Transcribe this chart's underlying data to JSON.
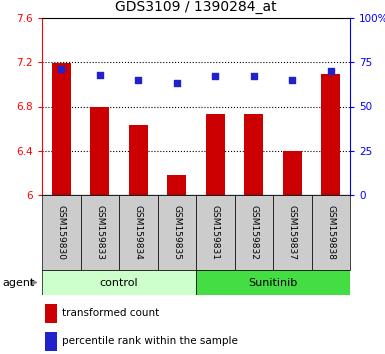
{
  "title": "GDS3109 / 1390284_at",
  "categories": [
    "GSM159830",
    "GSM159833",
    "GSM159834",
    "GSM159835",
    "GSM159831",
    "GSM159832",
    "GSM159837",
    "GSM159838"
  ],
  "bar_values": [
    7.19,
    6.8,
    6.63,
    6.18,
    6.73,
    6.73,
    6.4,
    7.09
  ],
  "dot_values": [
    71,
    68,
    65,
    63,
    67,
    67,
    65,
    70
  ],
  "ylim_left": [
    6.0,
    7.6
  ],
  "ylim_right": [
    0,
    100
  ],
  "yticks_left": [
    6.0,
    6.4,
    6.8,
    7.2,
    7.6
  ],
  "yticks_right": [
    0,
    25,
    50,
    75,
    100
  ],
  "ytick_labels_left": [
    "6",
    "6.4",
    "6.8",
    "7.2",
    "7.6"
  ],
  "ytick_labels_right": [
    "0",
    "25",
    "50",
    "75",
    "100%"
  ],
  "bar_color": "#cc0000",
  "dot_color": "#2222cc",
  "bar_bottom": 6.0,
  "control_color": "#ccffcc",
  "sunitinib_color": "#44dd44",
  "group_row_label": "agent",
  "legend_bar_label": "transformed count",
  "legend_dot_label": "percentile rank within the sample",
  "bg_color": "#ffffff",
  "plot_bg_color": "#ffffff",
  "xticklabel_bg": "#cccccc",
  "dotted_grid_ticks": [
    6.4,
    6.8,
    7.2
  ]
}
